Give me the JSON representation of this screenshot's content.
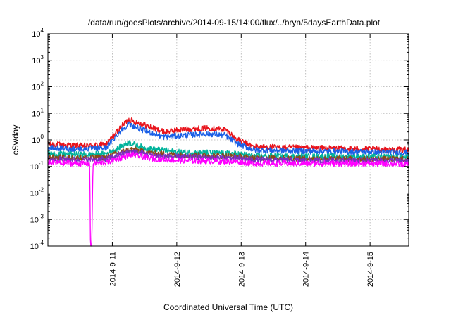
{
  "chart_data": {
    "type": "line",
    "title": "/data/run/goesPlots/archive/2014-09-15/14:00/flux/../bryn/5daysEarthData.plot",
    "xlabel": "Coordinated Universal Time (UTC)",
    "ylabel": "cSv/day",
    "yscale": "log",
    "ylim": [
      0.0001,
      10000
    ],
    "xlim": [
      0,
      5.6
    ],
    "yticks": [
      {
        "base": "10",
        "exp": "-4",
        "value": 0.0001
      },
      {
        "base": "10",
        "exp": "-3",
        "value": 0.001
      },
      {
        "base": "10",
        "exp": "-2",
        "value": 0.01
      },
      {
        "base": "10",
        "exp": "-1",
        "value": 0.1
      },
      {
        "base": "10",
        "exp": "0",
        "value": 1
      },
      {
        "base": "10",
        "exp": "1",
        "value": 10
      },
      {
        "base": "10",
        "exp": "2",
        "value": 100
      },
      {
        "base": "10",
        "exp": "3",
        "value": 1000
      },
      {
        "base": "10",
        "exp": "4",
        "value": 10000
      }
    ],
    "xticks": [
      {
        "label": "2014-9-11",
        "value": 1.0
      },
      {
        "label": "2014-9-12",
        "value": 2.0
      },
      {
        "label": "2014-9-13",
        "value": 3.0
      },
      {
        "label": "2014-9-14",
        "value": 4.0
      },
      {
        "label": "2014-9-15",
        "value": 5.0
      }
    ],
    "grid": true,
    "legend": "none",
    "series": [
      {
        "color": "#e8141c",
        "x": [
          0,
          0.5,
          0.9,
          1.1,
          1.25,
          1.45,
          1.8,
          2.1,
          2.5,
          2.75,
          2.95,
          3.2,
          4.0,
          5.0,
          5.6
        ],
        "y": [
          0.7,
          0.6,
          0.65,
          2.5,
          6.0,
          4.0,
          2.0,
          2.5,
          2.8,
          2.5,
          1.0,
          0.55,
          0.5,
          0.45,
          0.42
        ]
      },
      {
        "color": "#1a5fe6",
        "x": [
          0,
          0.5,
          0.9,
          1.1,
          1.25,
          1.45,
          1.8,
          2.1,
          2.5,
          2.75,
          2.95,
          3.2,
          4.0,
          5.0,
          5.6
        ],
        "y": [
          0.5,
          0.45,
          0.5,
          1.8,
          4.0,
          2.5,
          1.3,
          1.5,
          1.7,
          1.5,
          0.7,
          0.42,
          0.38,
          0.35,
          0.33
        ]
      },
      {
        "color": "#00b39b",
        "x": [
          0,
          0.5,
          0.9,
          1.1,
          1.25,
          1.5,
          2.0,
          2.5,
          2.95,
          3.2,
          4.0,
          5.0,
          5.6
        ],
        "y": [
          0.3,
          0.28,
          0.3,
          0.5,
          0.8,
          0.5,
          0.35,
          0.33,
          0.3,
          0.25,
          0.24,
          0.23,
          0.22
        ]
      },
      {
        "color": "#8b4a17",
        "x": [
          0,
          0.5,
          0.9,
          1.1,
          1.3,
          1.6,
          2.0,
          2.5,
          2.95,
          3.2,
          4.0,
          5.0,
          5.6
        ],
        "y": [
          0.22,
          0.21,
          0.22,
          0.33,
          0.45,
          0.32,
          0.27,
          0.26,
          0.24,
          0.21,
          0.2,
          0.19,
          0.19
        ]
      },
      {
        "color": "#7b2fbf",
        "x": [
          0,
          0.5,
          0.9,
          1.1,
          1.3,
          1.6,
          2.0,
          2.5,
          2.95,
          3.2,
          4.0,
          5.0,
          5.6
        ],
        "y": [
          0.19,
          0.18,
          0.19,
          0.28,
          0.38,
          0.27,
          0.23,
          0.22,
          0.2,
          0.18,
          0.17,
          0.17,
          0.16
        ]
      },
      {
        "color": "#ff00ff",
        "x": [
          0,
          0.5,
          0.65,
          0.66,
          0.68,
          0.7,
          0.9,
          1.1,
          1.3,
          1.6,
          2.0,
          2.5,
          2.95,
          3.2,
          4.0,
          5.0,
          5.6
        ],
        "y": [
          0.14,
          0.13,
          0.13,
          0.0001,
          0.0001,
          0.13,
          0.14,
          0.2,
          0.28,
          0.2,
          0.17,
          0.16,
          0.15,
          0.13,
          0.13,
          0.13,
          0.12
        ]
      }
    ]
  }
}
